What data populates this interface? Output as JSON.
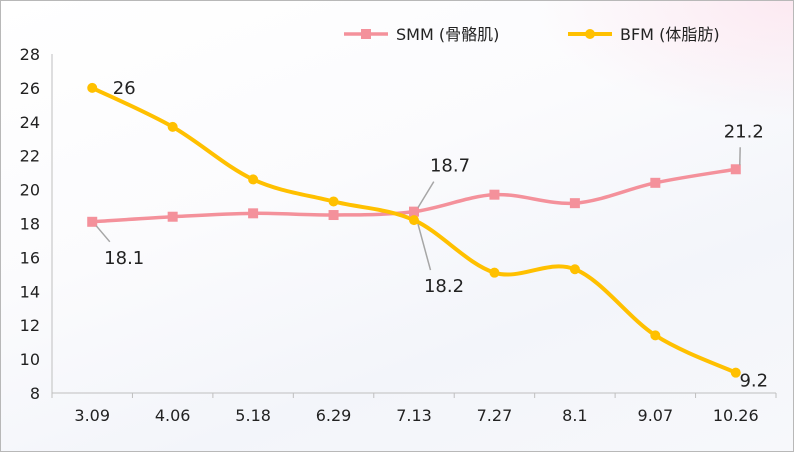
{
  "chart_data": {
    "type": "line",
    "title": "",
    "xlabel": "",
    "ylabel": "",
    "categories": [
      "3.09",
      "4.06",
      "5.18",
      "6.29",
      "7.13",
      "7.27",
      "8.1",
      "9.07",
      "10.26"
    ],
    "ylim": [
      8,
      28
    ],
    "yticks": [
      8,
      10,
      12,
      14,
      16,
      18,
      20,
      22,
      24,
      26,
      28
    ],
    "grid": false,
    "legend_position": "top-right",
    "smooth": true,
    "series": [
      {
        "name": "SMM (骨骼肌)",
        "color": "#f4919b",
        "marker": "square",
        "values": [
          18.1,
          18.4,
          18.6,
          18.5,
          18.7,
          19.7,
          19.2,
          20.4,
          21.2
        ],
        "labels": [
          {
            "index": 0,
            "text": "18.1"
          },
          {
            "index": 4,
            "text": "18.7"
          },
          {
            "index": 8,
            "text": "21.2"
          }
        ]
      },
      {
        "name": "BFM (体脂肪)",
        "color": "#ffc000",
        "marker": "circle",
        "values": [
          26,
          23.7,
          20.6,
          19.3,
          18.2,
          15.1,
          15.3,
          11.4,
          9.2
        ],
        "labels": [
          {
            "index": 0,
            "text": "26"
          },
          {
            "index": 4,
            "text": "18.2"
          },
          {
            "index": 8,
            "text": "9.2"
          }
        ]
      }
    ]
  }
}
